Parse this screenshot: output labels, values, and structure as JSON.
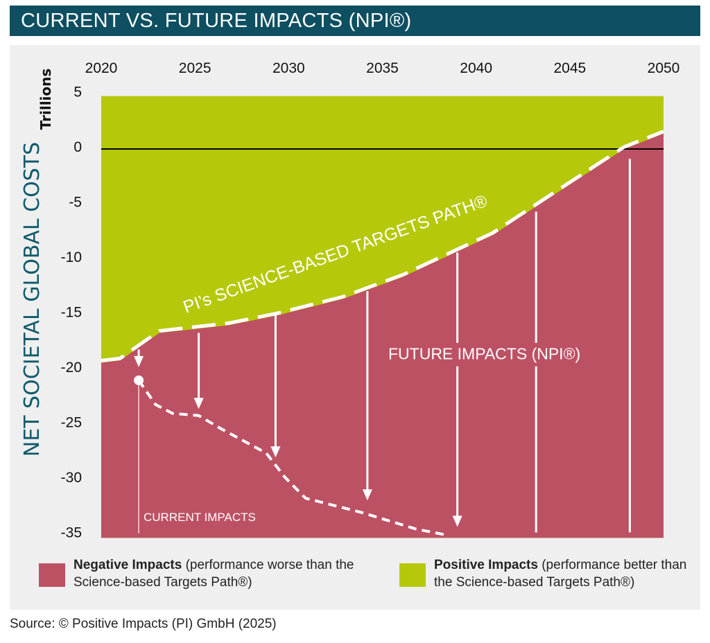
{
  "header": {
    "title": "CURRENT VS. FUTURE IMPACTS (NPI®)"
  },
  "chart_data": {
    "type": "area",
    "title": "CURRENT VS. FUTURE IMPACTS (NPI®)",
    "ylabel": "NET SOCIETAL GLOBAL COSTS",
    "yunit": "Trillions",
    "xlim": [
      2020,
      2050
    ],
    "ylim": [
      -35,
      5
    ],
    "xticks": [
      "2020",
      "2025",
      "2030",
      "2035",
      "2040",
      "2045",
      "2050"
    ],
    "xtick_values": [
      2020,
      2025,
      2030,
      2035,
      2040,
      2045,
      2050
    ],
    "yticks": [
      "5",
      "0",
      "-5",
      "-10",
      "-15",
      "-20",
      "-25",
      "-30",
      "-35"
    ],
    "ytick_values": [
      5,
      0,
      -5,
      -10,
      -15,
      -20,
      -25,
      -30,
      -35
    ],
    "colors": {
      "negative": "#bd5164",
      "positive": "#b5c90a",
      "title_bar": "#0e4f61",
      "axis_title": "#0e5a6b"
    },
    "science_path": {
      "label": "PI’s SCIENCE-BASED TARGETS PATH®",
      "x": [
        2020,
        2021,
        2023.1,
        2026.8,
        2029.4,
        2032.9,
        2036.1,
        2040.9,
        2044.2,
        2047.9,
        2050
      ],
      "y": [
        -19.4,
        -19.2,
        -16.7,
        -16.0,
        -15.1,
        -13.6,
        -11.6,
        -7.8,
        -4.1,
        0,
        1.4
      ]
    },
    "current_impacts": {
      "label": "CURRENT IMPACTS",
      "x": [
        2022.0,
        2022.9,
        2023.8,
        2025.2,
        2026.4,
        2028.8,
        2029.8,
        2030.9,
        2033.9,
        2036.8,
        2038.3
      ],
      "y": [
        -21.0,
        -23.2,
        -24.0,
        -24.2,
        -25.4,
        -27.6,
        -29.8,
        -31.7,
        -33.0,
        -34.5,
        -35.0
      ]
    },
    "future_impacts_label": "FUTURE IMPACTS (NPI®)",
    "arrows": [
      {
        "x": 2022.0,
        "from": -18.2,
        "to": -19.8,
        "head": true
      },
      {
        "x": 2025.2,
        "from": -16.7,
        "to": -23.6,
        "head": true
      },
      {
        "x": 2029.3,
        "from": -15.1,
        "to": -28.0,
        "head": true
      },
      {
        "x": 2034.2,
        "from": -12.9,
        "to": -31.9,
        "head": true
      },
      {
        "x": 2039.0,
        "from": -9.4,
        "to": -34.3,
        "head": true
      },
      {
        "x": 2043.2,
        "from": -5.7,
        "to": -34.8,
        "head": false
      },
      {
        "x": 2048.2,
        "from": -0.9,
        "to": -34.8,
        "head": false
      }
    ],
    "legend": [
      {
        "bold": "Negative Impacts",
        "text": " (performance worse than the Science-based Targets Path®)",
        "color": "#bd5164"
      },
      {
        "bold": "Positive Impacts",
        "text": " (performance better than the Science-based Targets Path®)",
        "color": "#b5c90a"
      }
    ]
  },
  "source": "Source: © Positive Impacts (PI) GmbH (2025)"
}
